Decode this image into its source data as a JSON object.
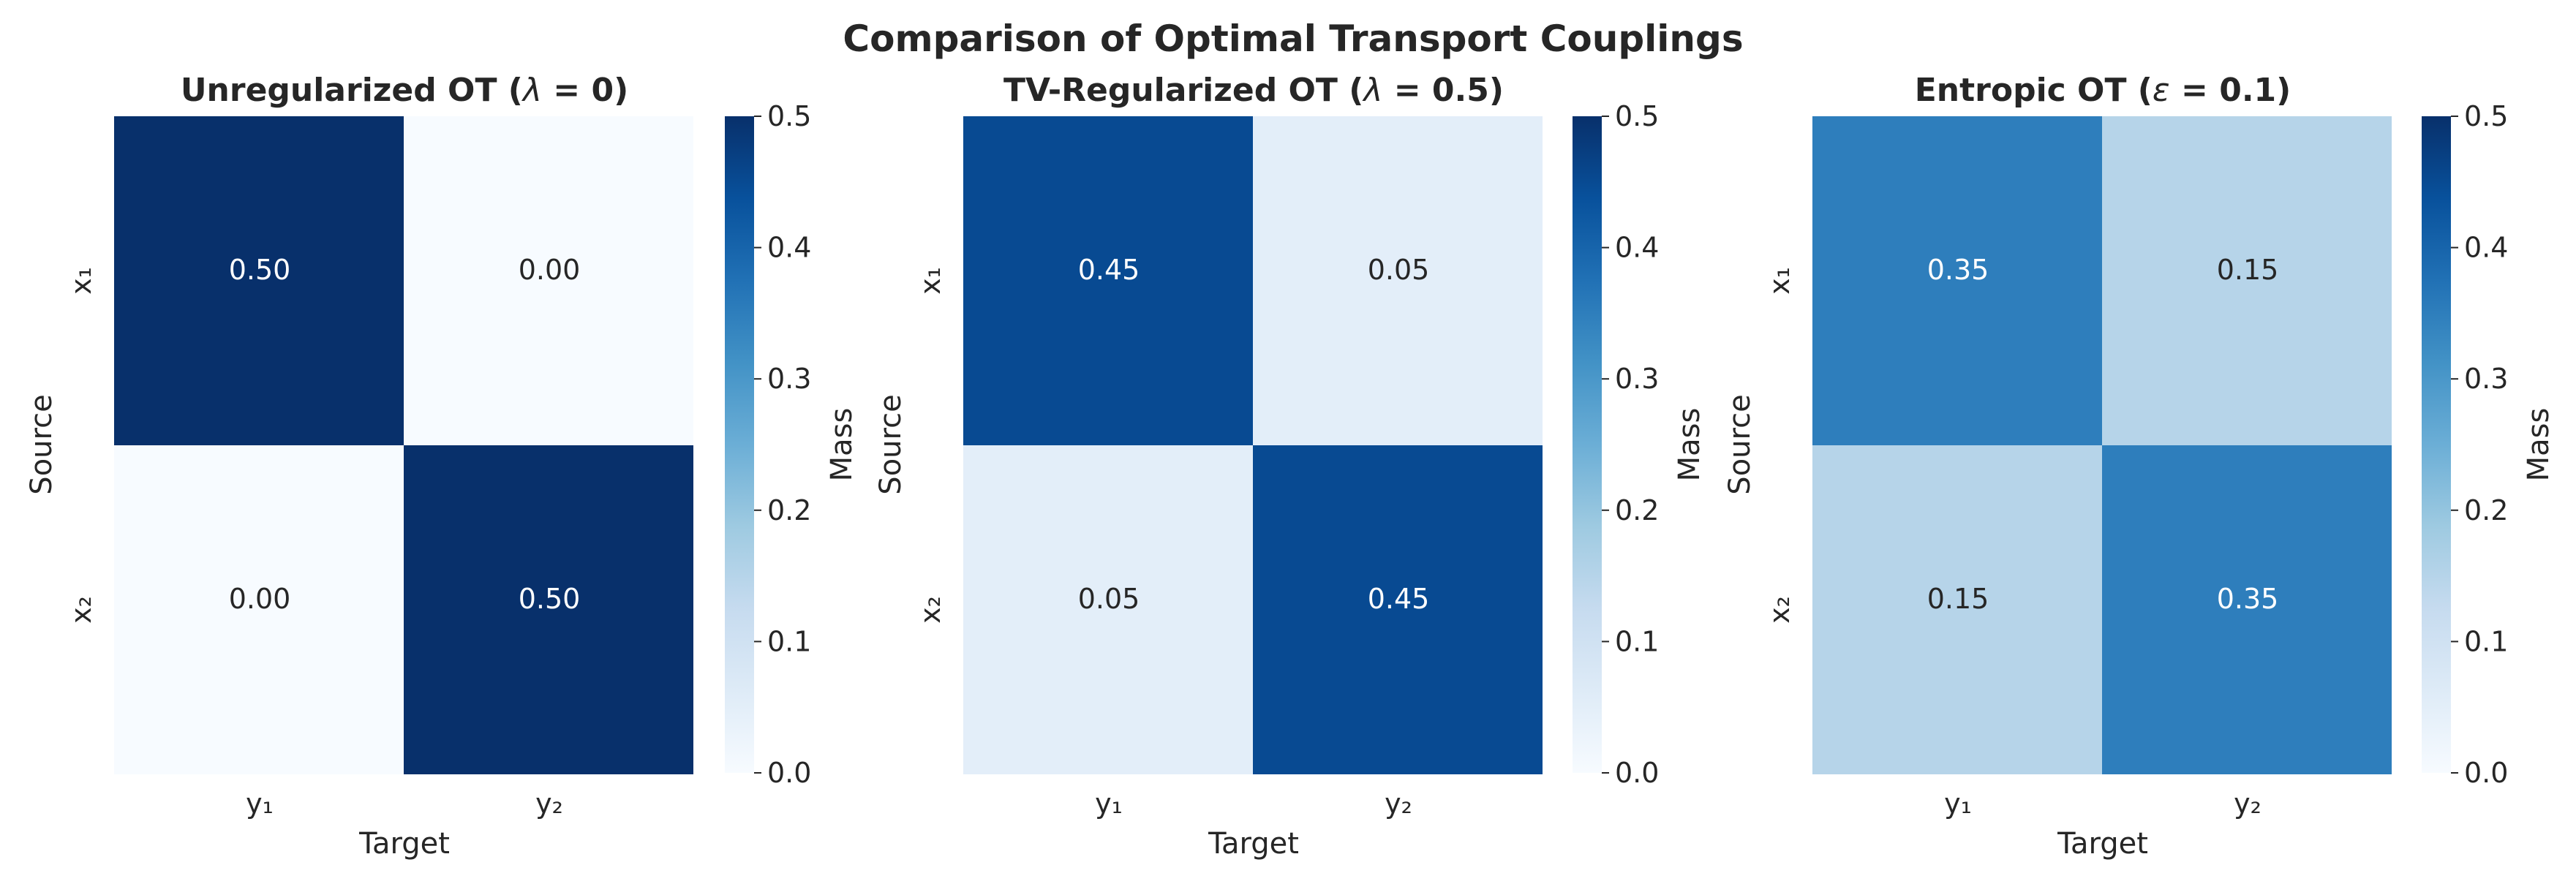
{
  "chart_data": {
    "title": "Comparison of Optimal Transport Couplings",
    "colormap": "Blues",
    "panels": [
      {
        "type": "heatmap",
        "title_prefix": "Unregularized OT (",
        "title_symbol": "λ",
        "title_suffix": " = 0)",
        "row_labels": [
          "x₁",
          "x₂"
        ],
        "col_labels": [
          "y₁",
          "y₂"
        ],
        "values": [
          [
            0.5,
            0.0
          ],
          [
            0.0,
            0.5
          ]
        ],
        "cell_labels": [
          [
            "0.50",
            "0.00"
          ],
          [
            "0.00",
            "0.50"
          ]
        ],
        "xlabel": "Target",
        "ylabel": "Source",
        "colorbar": {
          "label": "Mass",
          "range": [
            0,
            0.5
          ],
          "ticks": [
            "0.0",
            "0.1",
            "0.2",
            "0.3",
            "0.4",
            "0.5"
          ]
        }
      },
      {
        "type": "heatmap",
        "title_prefix": "TV-Regularized OT (",
        "title_symbol": "λ",
        "title_suffix": " = 0.5)",
        "row_labels": [
          "x₁",
          "x₂"
        ],
        "col_labels": [
          "y₁",
          "y₂"
        ],
        "values": [
          [
            0.45,
            0.05
          ],
          [
            0.05,
            0.45
          ]
        ],
        "cell_labels": [
          [
            "0.45",
            "0.05"
          ],
          [
            "0.05",
            "0.45"
          ]
        ],
        "xlabel": "Target",
        "ylabel": "Source",
        "colorbar": {
          "label": "Mass",
          "range": [
            0,
            0.5
          ],
          "ticks": [
            "0.0",
            "0.1",
            "0.2",
            "0.3",
            "0.4",
            "0.5"
          ]
        }
      },
      {
        "type": "heatmap",
        "title_prefix": "Entropic OT (",
        "title_symbol": "ε",
        "title_suffix": " = 0.1)",
        "row_labels": [
          "x₁",
          "x₂"
        ],
        "col_labels": [
          "y₁",
          "y₂"
        ],
        "values": [
          [
            0.35,
            0.15
          ],
          [
            0.15,
            0.35
          ]
        ],
        "cell_labels": [
          [
            "0.35",
            "0.15"
          ],
          [
            "0.15",
            "0.35"
          ]
        ],
        "xlabel": "Target",
        "ylabel": "Source",
        "colorbar": {
          "label": "Mass",
          "range": [
            0,
            0.5
          ],
          "ticks": [
            "0.0",
            "0.1",
            "0.2",
            "0.3",
            "0.4",
            "0.5"
          ]
        }
      }
    ]
  }
}
